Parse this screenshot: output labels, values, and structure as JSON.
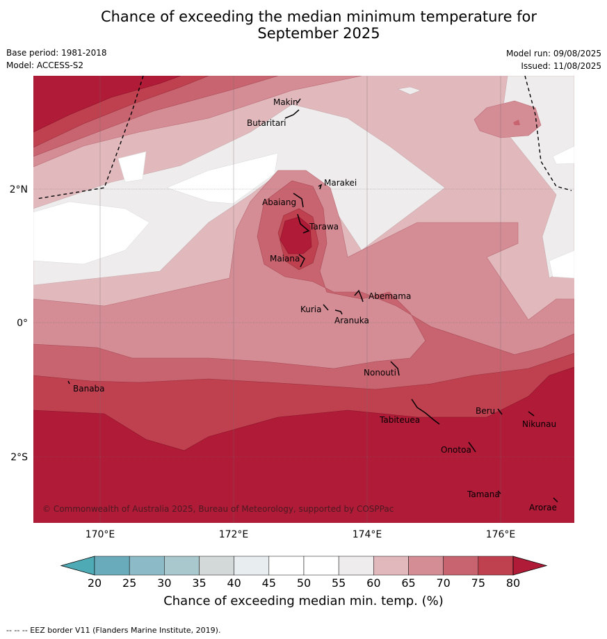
{
  "title_line1": "Chance of exceeding the median minimum temperature for",
  "title_line2": "September 2025",
  "base_period": "Base period: 1981-2018",
  "model": "Model: ACCESS-S2",
  "model_run": "Model run: 09/08/2025",
  "issued": "Issued: 11/08/2025",
  "lon_ticks": [
    "170°E",
    "172°E",
    "174°E",
    "176°E"
  ],
  "lat_ticks": [
    "2°N",
    "0°",
    "2°S"
  ],
  "places": [
    "Makin",
    "Butaritari",
    "Marakei",
    "Abaiang",
    "Tarawa",
    "Maiana",
    "Abemama",
    "Kuria",
    "Aranuka",
    "Nonouti",
    "Banaba",
    "Beru",
    "Nikunau",
    "Tabiteuea",
    "Onotoa",
    "Tamana",
    "Arorae"
  ],
  "copyright": "© Commonwealth of Australia 2025, Bureau of Meteorology, supported by COSPPac",
  "colorbar": {
    "ticks": [
      "20",
      "25",
      "30",
      "35",
      "40",
      "45",
      "50",
      "55",
      "60",
      "65",
      "70",
      "75",
      "80"
    ],
    "colors": [
      "#6aabbb",
      "#8cbbc7",
      "#a8c8cd",
      "#d3d8d9",
      "#e8eef0",
      "#ffffff",
      "#ffffff",
      "#eeecec",
      "#e1b9bd",
      "#d48c95",
      "#c8646f",
      "#bf4150"
    ],
    "under_color": "#4eaab5",
    "over_color": "#b01b37",
    "label": "Chance of exceeding median min. temp. (%)"
  },
  "footer": "--  --  -- EEZ border V11 (Flanders Marine Institute, 2019)."
}
